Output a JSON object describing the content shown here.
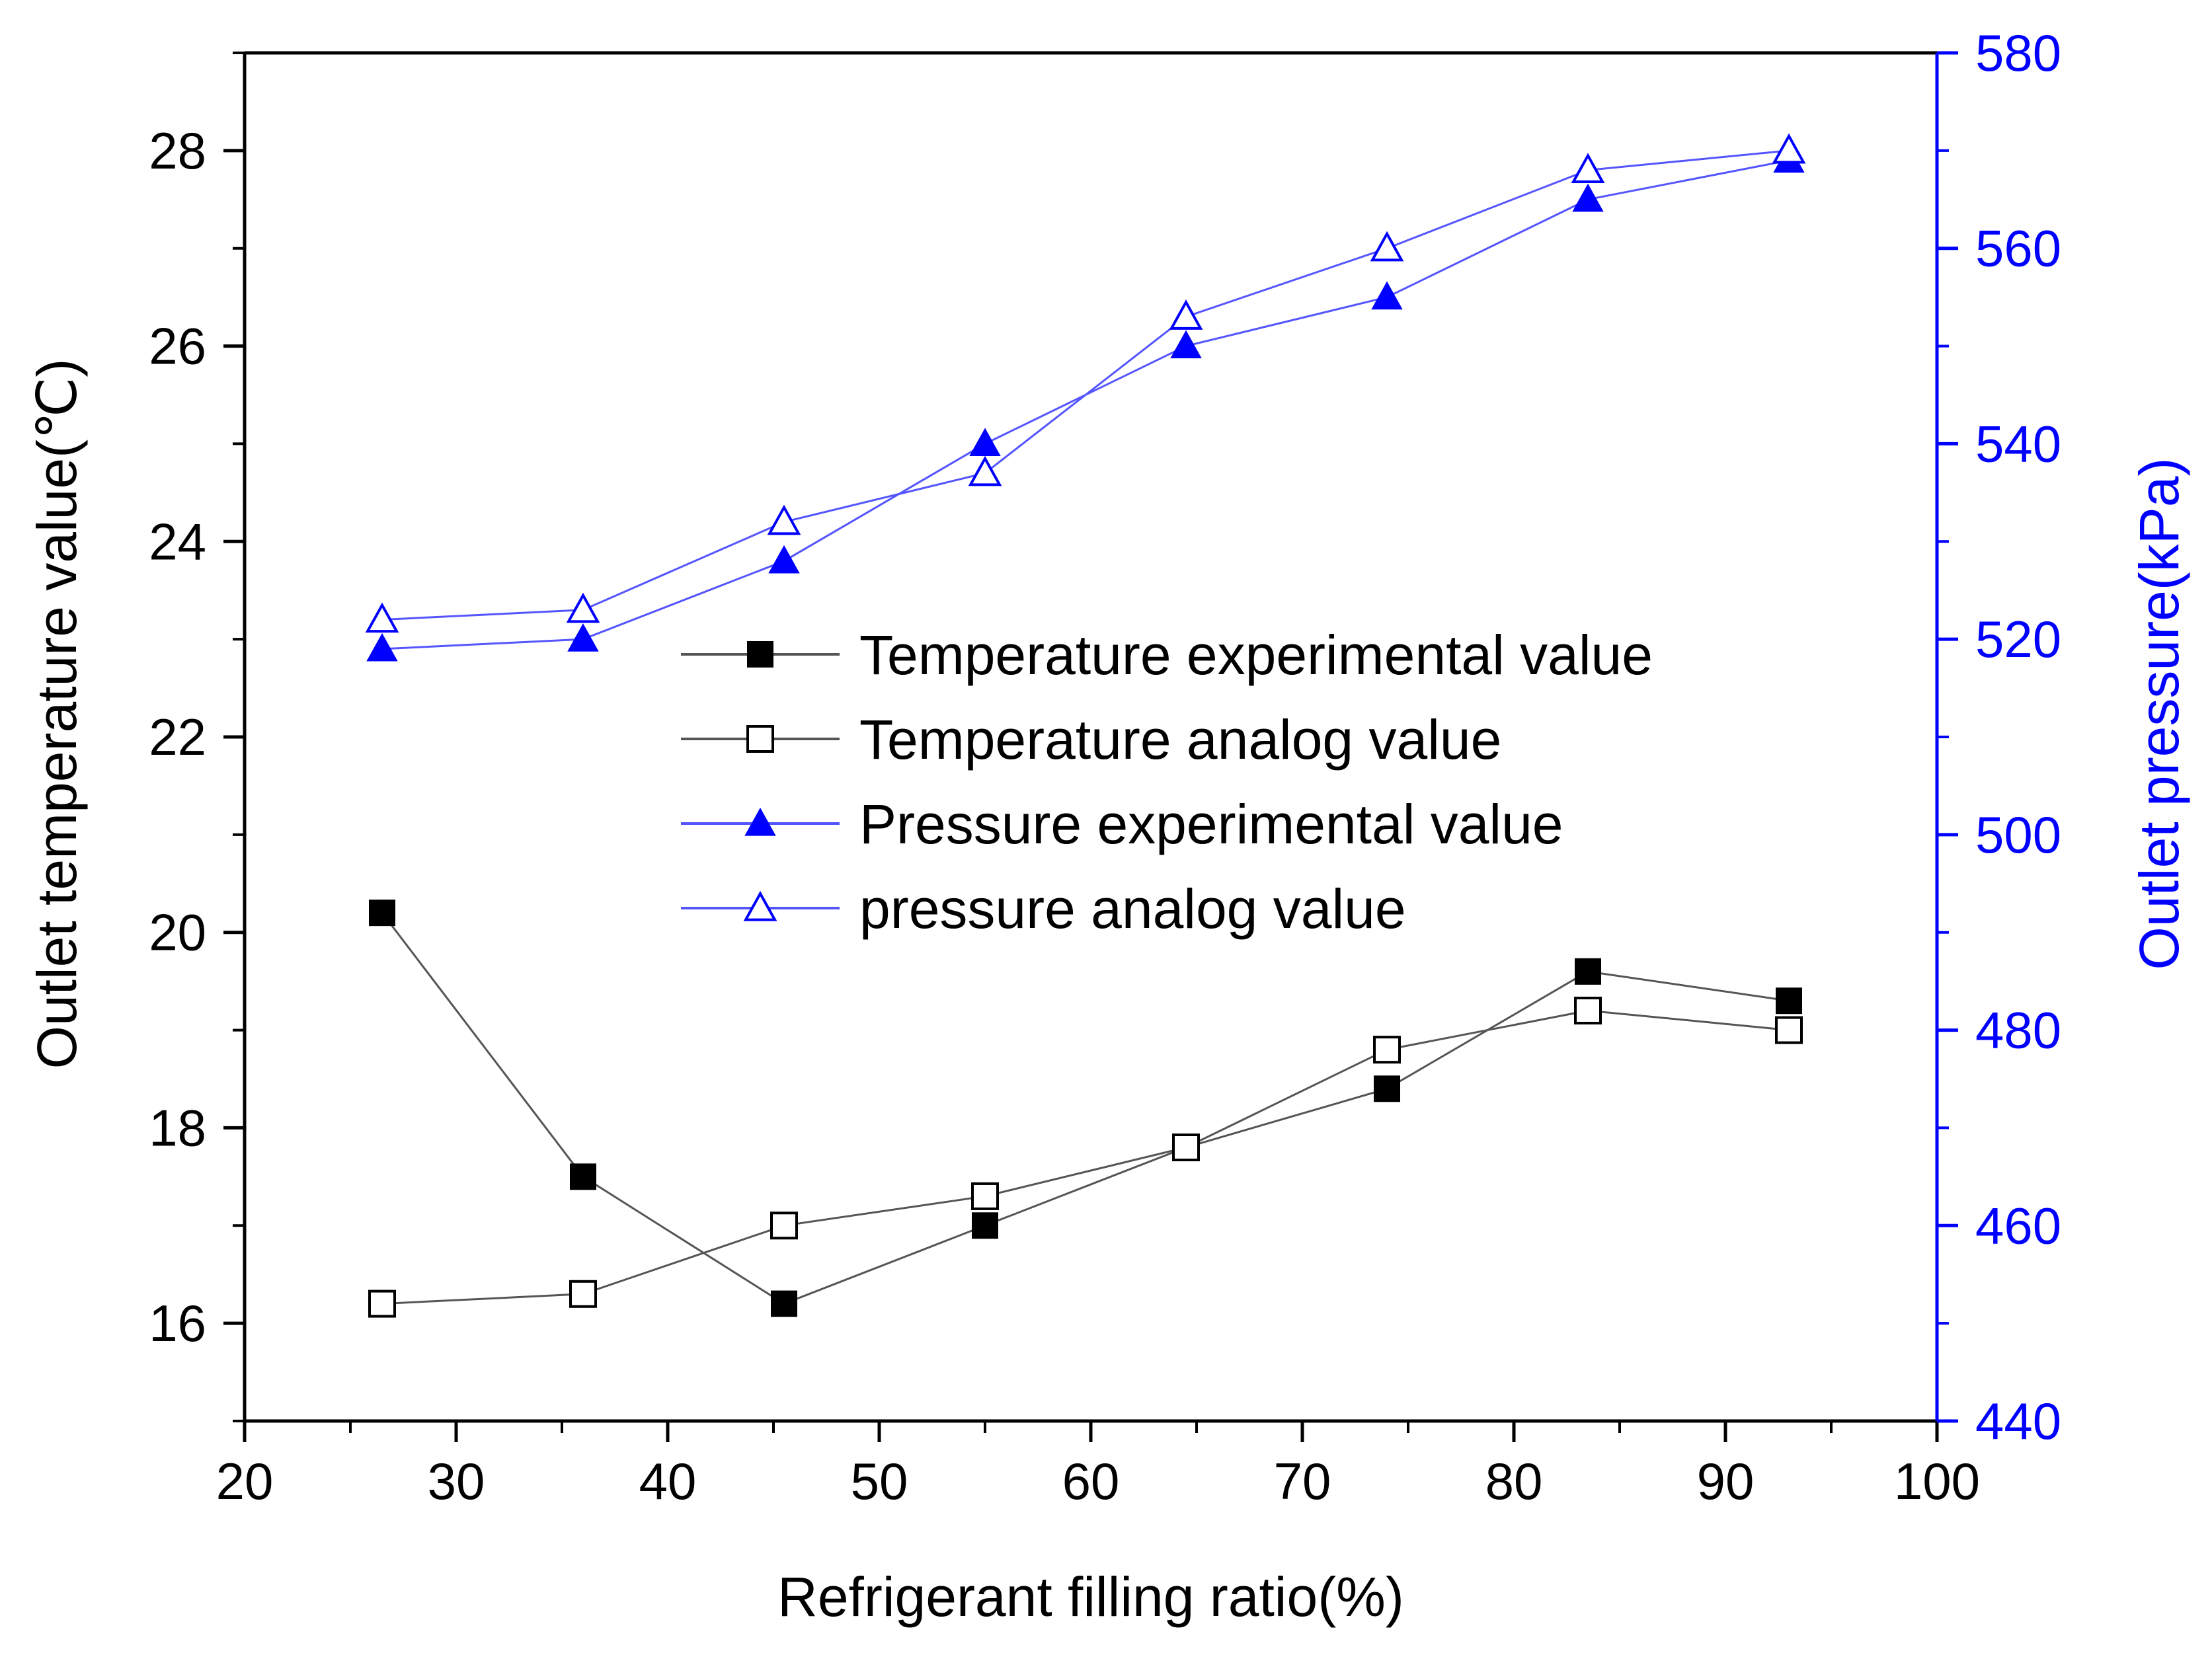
{
  "chart_data": {
    "type": "line",
    "title": "",
    "xlabel": "Refrigerant filling ratio(%)",
    "ylabel": "Outlet temperature value(℃)",
    "y2label": "Outlet pressure(kPa)",
    "xlim": [
      20,
      100
    ],
    "ylim": [
      15,
      29
    ],
    "y2lim": [
      440,
      580
    ],
    "xticks": [
      "20",
      "30",
      "40",
      "50",
      "60",
      "70",
      "80",
      "90",
      "100"
    ],
    "yticks": [
      "16",
      "18",
      "20",
      "22",
      "24",
      "26",
      "28"
    ],
    "y2ticks": [
      "440",
      "460",
      "480",
      "500",
      "520",
      "540",
      "560",
      "580"
    ],
    "x": [
      26.5,
      36,
      45.5,
      55,
      64.5,
      74,
      83.5,
      93
    ],
    "series": [
      {
        "name": "Temperature experimental value",
        "axis": "left",
        "marker": "square-filled",
        "color": "#000000",
        "line_color": "#555555",
        "values": [
          20.2,
          17.5,
          16.2,
          17.0,
          17.8,
          18.4,
          19.6,
          19.3
        ]
      },
      {
        "name": "Temperature analog value",
        "axis": "left",
        "marker": "square-open",
        "color": "#000000",
        "line_color": "#555555",
        "values": [
          16.2,
          16.3,
          17.0,
          17.3,
          17.8,
          18.8,
          19.2,
          19.0
        ]
      },
      {
        "name": "Pressure experimental value",
        "axis": "right",
        "marker": "triangle-filled",
        "color": "#0000ff",
        "line_color": "#5555ff",
        "values": [
          519,
          520,
          528,
          540,
          550,
          555,
          565,
          569
        ]
      },
      {
        "name": "pressure analog value",
        "axis": "right",
        "marker": "triangle-open",
        "color": "#0000ff",
        "line_color": "#5555ff",
        "values": [
          522,
          523,
          532,
          537,
          553,
          560,
          568,
          570
        ]
      }
    ],
    "legend_position": "center-right",
    "left_axis_color": "#000000",
    "right_axis_color": "#0000ff",
    "grid": false
  }
}
